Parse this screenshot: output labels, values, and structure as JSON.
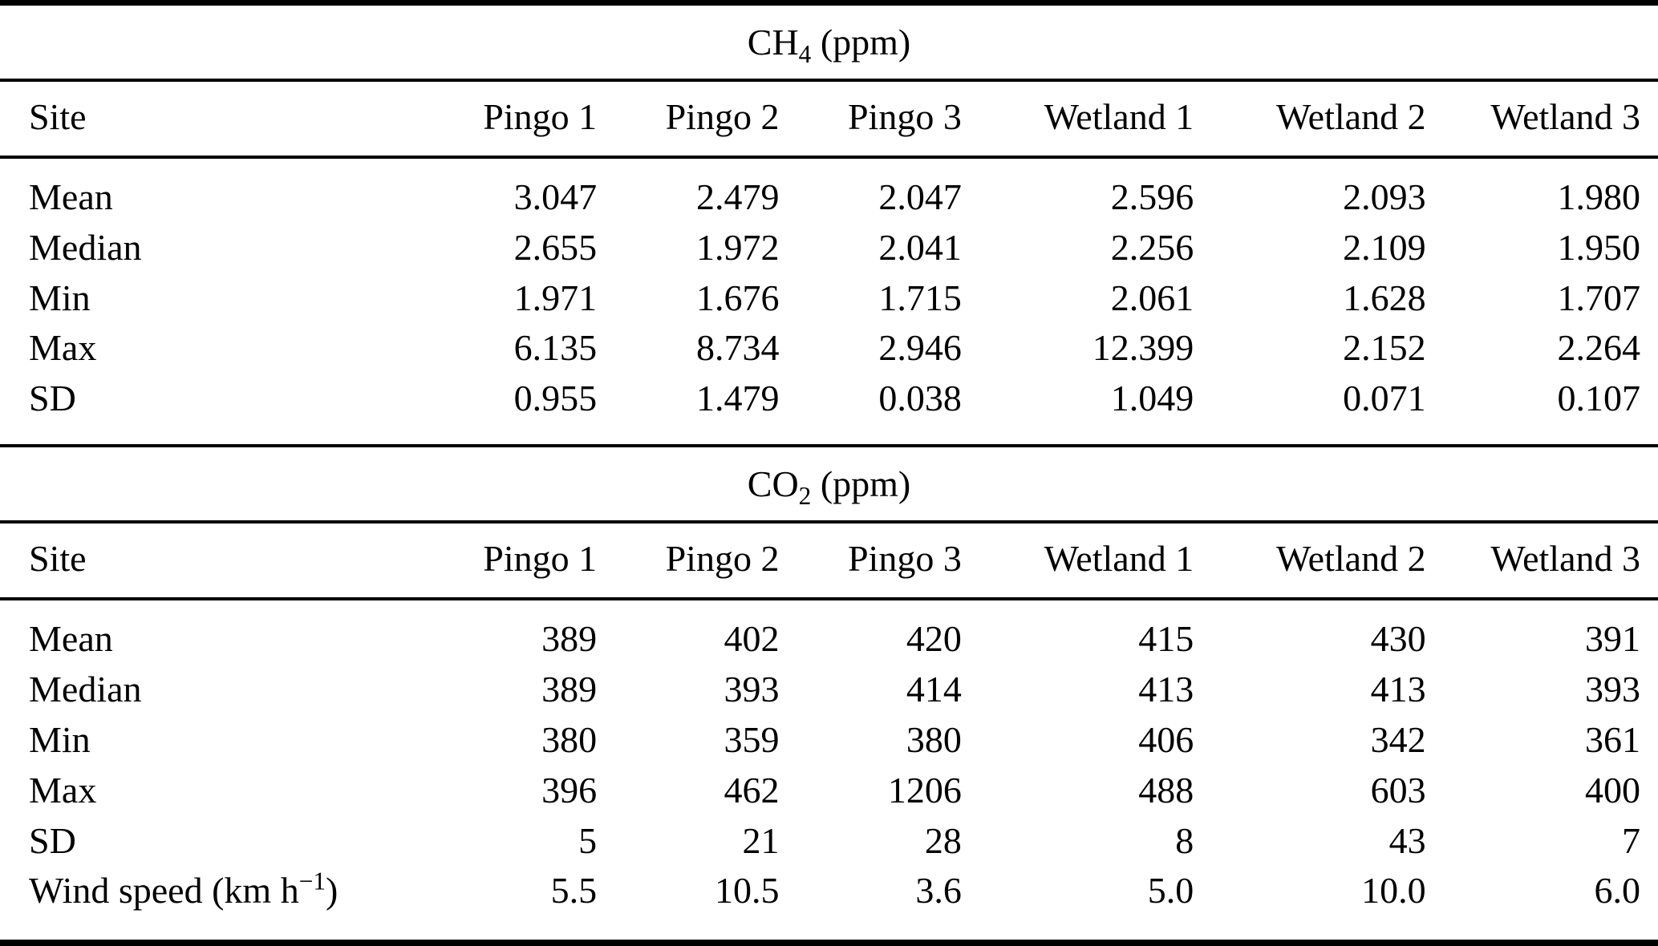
{
  "figure": {
    "background": "#ffffff",
    "text_color": "#000000",
    "rule_color": "#000000",
    "columns": [
      "Site",
      "Pingo 1",
      "Pingo 2",
      "Pingo 3",
      "Wetland 1",
      "Wetland 2",
      "Wetland 3"
    ],
    "sections": [
      {
        "id": "ch4",
        "title_parts": [
          {
            "t": "CH"
          },
          {
            "sub": "4"
          },
          {
            "t": " (ppm)"
          }
        ],
        "rows": [
          {
            "label_parts": [
              {
                "t": "Mean"
              }
            ],
            "values": [
              "3.047",
              "2.479",
              "2.047",
              "2.596",
              "2.093",
              "1.980"
            ]
          },
          {
            "label_parts": [
              {
                "t": "Median"
              }
            ],
            "values": [
              "2.655",
              "1.972",
              "2.041",
              "2.256",
              "2.109",
              "1.950"
            ]
          },
          {
            "label_parts": [
              {
                "t": "Min"
              }
            ],
            "values": [
              "1.971",
              "1.676",
              "1.715",
              "2.061",
              "1.628",
              "1.707"
            ]
          },
          {
            "label_parts": [
              {
                "t": "Max"
              }
            ],
            "values": [
              "6.135",
              "8.734",
              "2.946",
              "12.399",
              "2.152",
              "2.264"
            ]
          },
          {
            "label_parts": [
              {
                "t": "SD"
              }
            ],
            "values": [
              "0.955",
              "1.479",
              "0.038",
              "1.049",
              "0.071",
              "0.107"
            ]
          }
        ]
      },
      {
        "id": "co2",
        "title_parts": [
          {
            "t": "CO"
          },
          {
            "sub": "2"
          },
          {
            "t": " (ppm)"
          }
        ],
        "rows": [
          {
            "label_parts": [
              {
                "t": "Mean"
              }
            ],
            "values": [
              "389",
              "402",
              "420",
              "415",
              "430",
              "391"
            ]
          },
          {
            "label_parts": [
              {
                "t": "Median"
              }
            ],
            "values": [
              "389",
              "393",
              "414",
              "413",
              "413",
              "393"
            ]
          },
          {
            "label_parts": [
              {
                "t": "Min"
              }
            ],
            "values": [
              "380",
              "359",
              "380",
              "406",
              "342",
              "361"
            ]
          },
          {
            "label_parts": [
              {
                "t": "Max"
              }
            ],
            "values": [
              "396",
              "462",
              "1206",
              "488",
              "603",
              "400"
            ]
          },
          {
            "label_parts": [
              {
                "t": "SD"
              }
            ],
            "values": [
              "5",
              "21",
              "28",
              "8",
              "43",
              "7"
            ]
          },
          {
            "label_parts": [
              {
                "t": "Wind speed (km h"
              },
              {
                "sup": "−1"
              },
              {
                "t": ")"
              }
            ],
            "values": [
              "5.5",
              "10.5",
              "3.6",
              "5.0",
              "10.0",
              "6.0"
            ]
          }
        ]
      }
    ]
  },
  "chart_data": [
    {
      "type": "table",
      "title": "CH4 (ppm)",
      "columns": [
        "Site",
        "Pingo 1",
        "Pingo 2",
        "Pingo 3",
        "Wetland 1",
        "Wetland 2",
        "Wetland 3"
      ],
      "rows": [
        [
          "Mean",
          3.047,
          2.479,
          2.047,
          2.596,
          2.093,
          1.98
        ],
        [
          "Median",
          2.655,
          1.972,
          2.041,
          2.256,
          2.109,
          1.95
        ],
        [
          "Min",
          1.971,
          1.676,
          1.715,
          2.061,
          1.628,
          1.707
        ],
        [
          "Max",
          6.135,
          8.734,
          2.946,
          12.399,
          2.152,
          2.264
        ],
        [
          "SD",
          0.955,
          1.479,
          0.038,
          1.049,
          0.071,
          0.107
        ]
      ]
    },
    {
      "type": "table",
      "title": "CO2 (ppm)",
      "columns": [
        "Site",
        "Pingo 1",
        "Pingo 2",
        "Pingo 3",
        "Wetland 1",
        "Wetland 2",
        "Wetland 3"
      ],
      "rows": [
        [
          "Mean",
          389,
          402,
          420,
          415,
          430,
          391
        ],
        [
          "Median",
          389,
          393,
          414,
          413,
          413,
          393
        ],
        [
          "Min",
          380,
          359,
          380,
          406,
          342,
          361
        ],
        [
          "Max",
          396,
          462,
          1206,
          488,
          603,
          400
        ],
        [
          "SD",
          5,
          21,
          28,
          8,
          43,
          7
        ],
        [
          "Wind speed (km h^-1)",
          5.5,
          10.5,
          3.6,
          5.0,
          10.0,
          6.0
        ]
      ]
    }
  ]
}
